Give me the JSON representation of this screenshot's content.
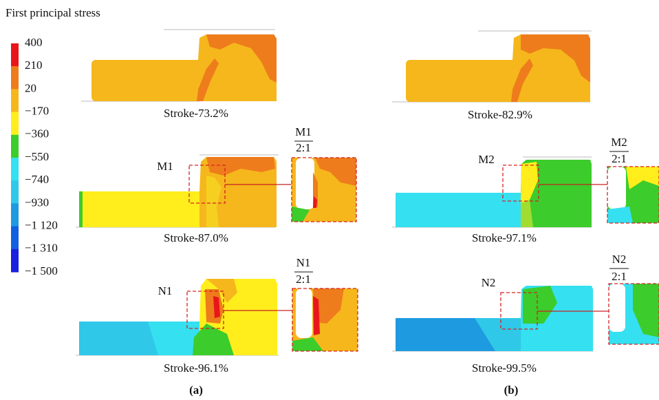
{
  "legend": {
    "title": "First principal stress",
    "labels": [
      "400",
      "210",
      "20",
      "−170",
      "−360",
      "−550",
      "−740",
      "−930",
      "−1 120",
      "−1 310",
      "−1 500"
    ]
  },
  "panels": [
    {
      "caption": "Stroke-73.2%"
    },
    {
      "caption": "Stroke-82.9%"
    },
    {
      "caption": "Stroke-87.0%",
      "detail": {
        "name": "M1",
        "scale": "2:1"
      }
    },
    {
      "caption": "Stroke-97.1%",
      "detail": {
        "name": "M2",
        "scale": "2:1"
      }
    },
    {
      "caption": "Stroke-96.1%",
      "detail": {
        "name": "N1",
        "scale": "2:1"
      }
    },
    {
      "caption": "Stroke-99.5%",
      "detail": {
        "name": "N2",
        "scale": "2:1"
      }
    }
  ],
  "sublabels": [
    "(a)",
    "(b)"
  ]
}
